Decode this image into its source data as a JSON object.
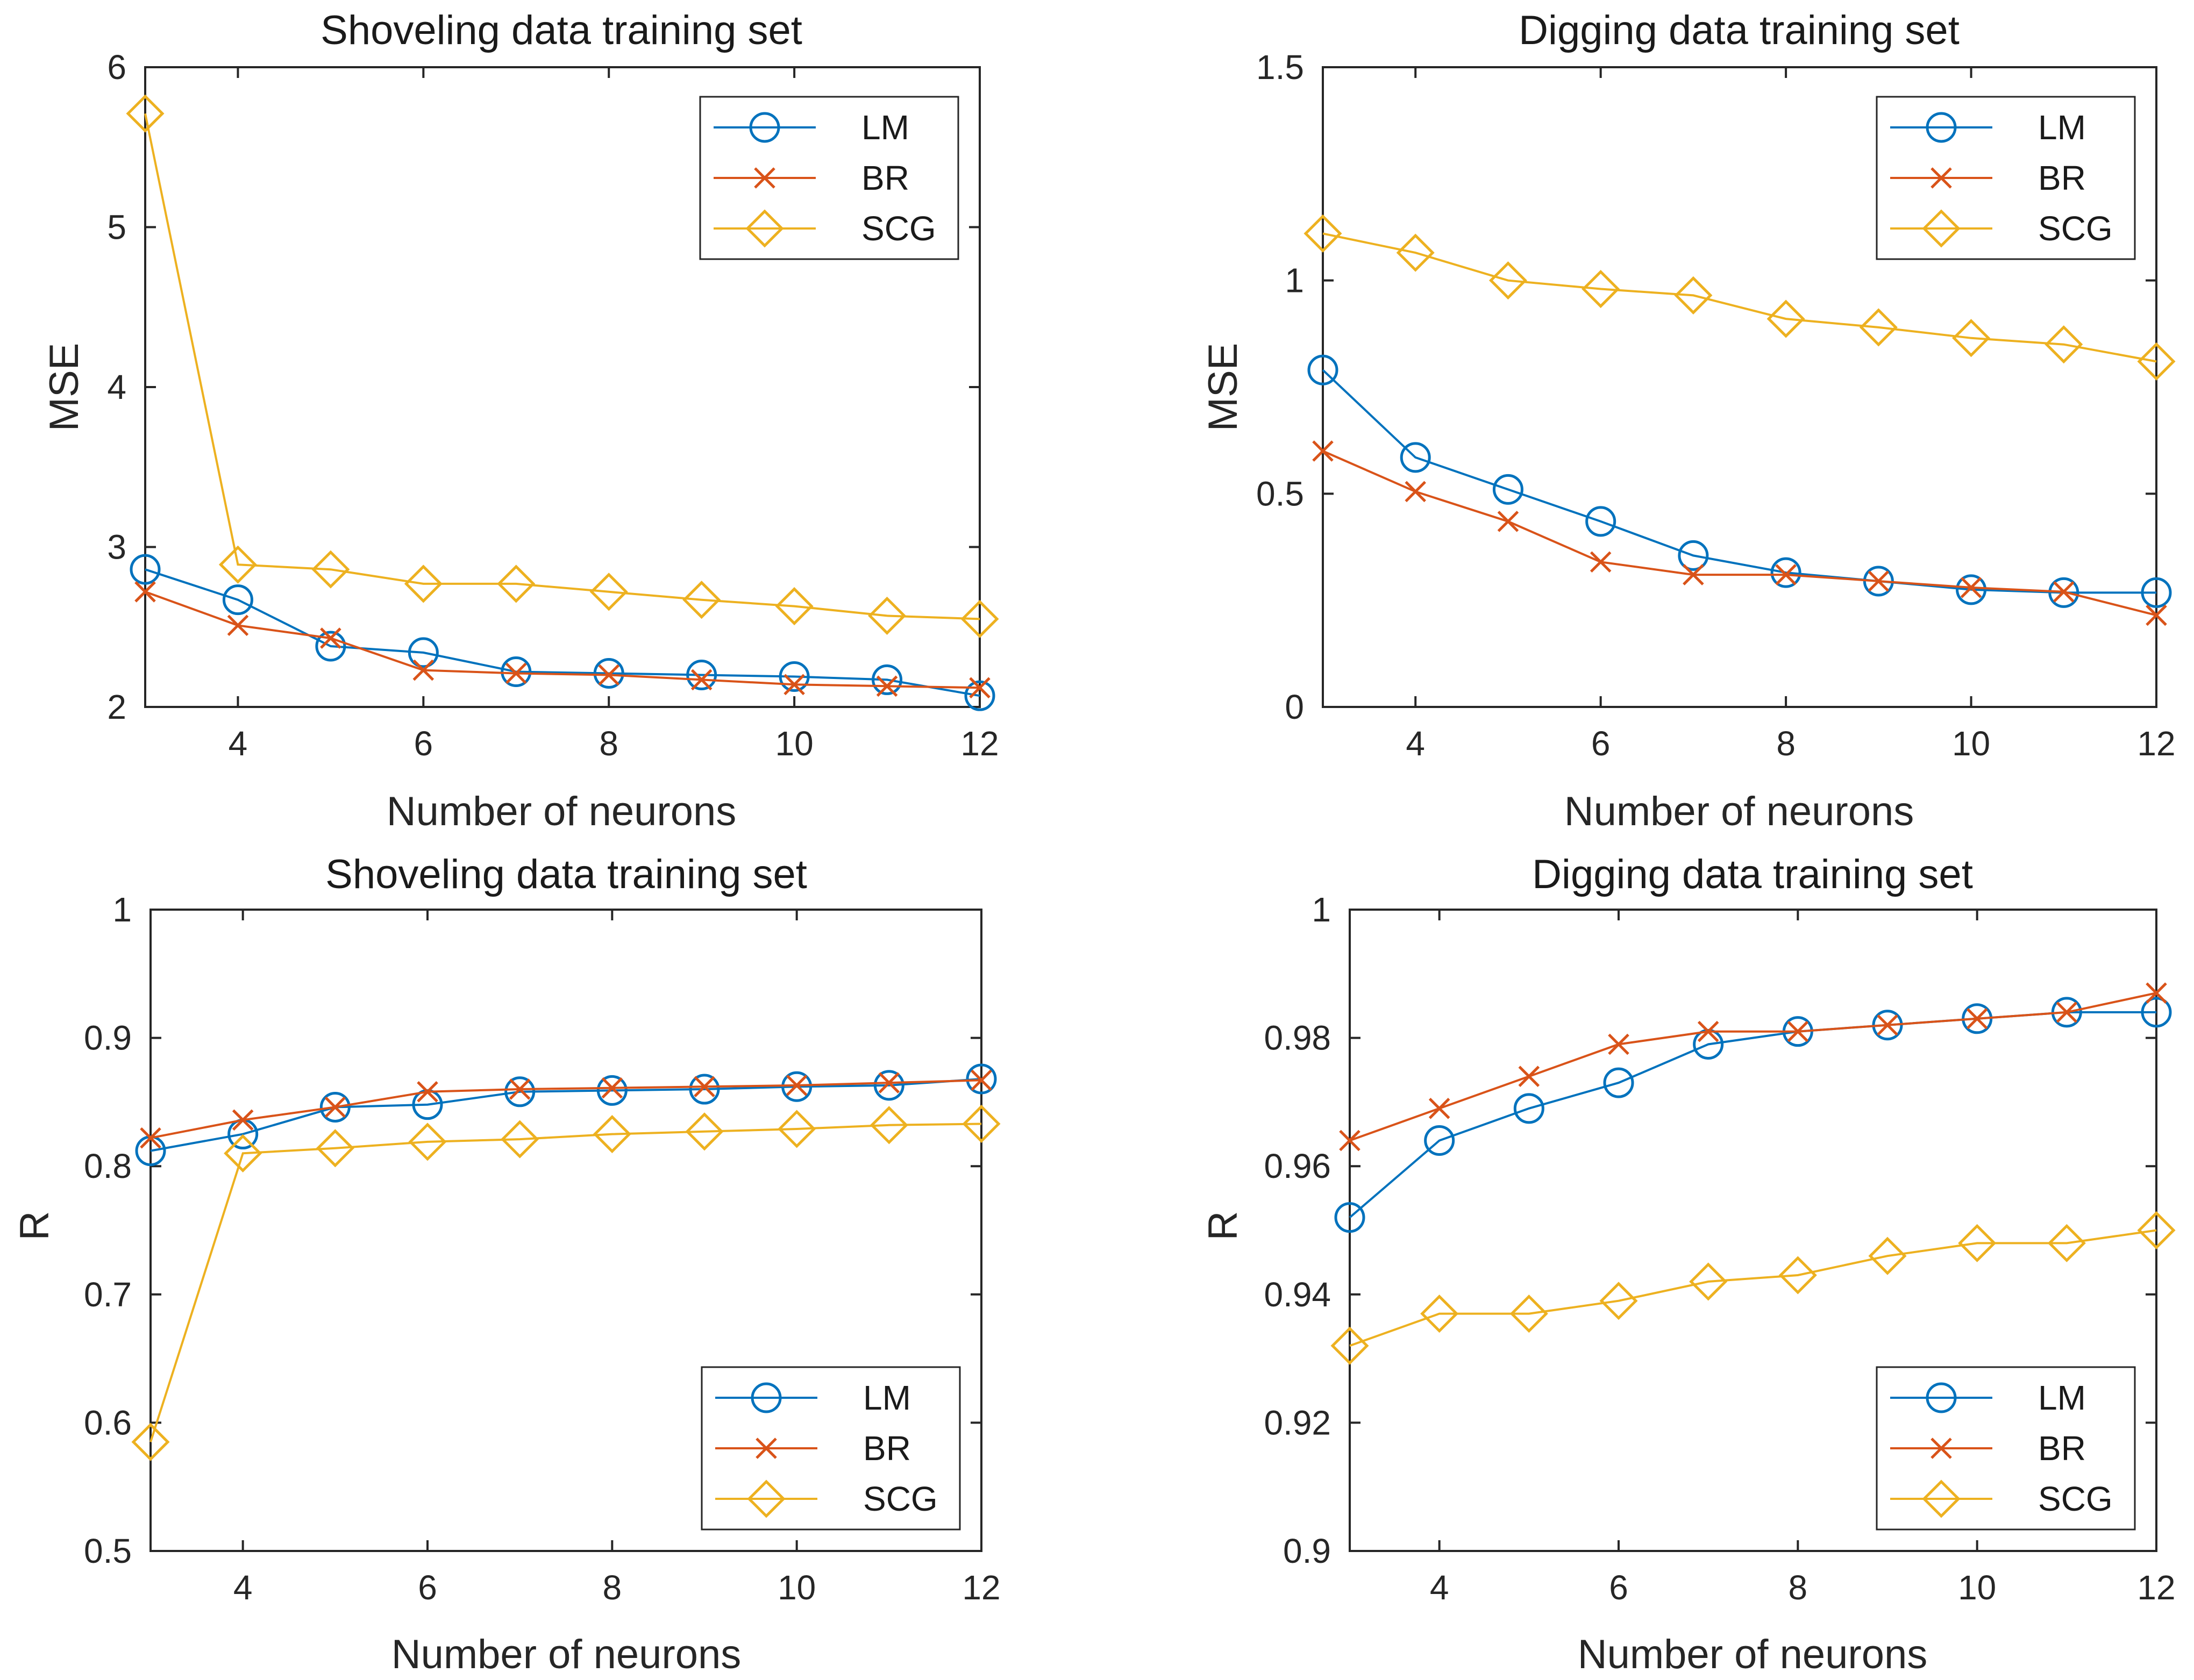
{
  "chart_data": [
    {
      "type": "line",
      "title": "Shoveling data training set",
      "xlabel": "Number of neurons",
      "ylabel": "MSE",
      "xlim": [
        3,
        12
      ],
      "ylim": [
        2,
        6
      ],
      "xticks": [
        4,
        6,
        8,
        10,
        12
      ],
      "yticks": [
        2,
        3,
        4,
        5,
        6
      ],
      "legend_position": "top-right",
      "x": [
        3,
        4,
        5,
        6,
        7,
        8,
        9,
        10,
        11,
        12
      ],
      "series": [
        {
          "name": "LM",
          "color": "#0072BD",
          "marker": "circle",
          "values": [
            2.86,
            2.67,
            2.38,
            2.34,
            2.22,
            2.21,
            2.2,
            2.19,
            2.17,
            2.07
          ]
        },
        {
          "name": "BR",
          "color": "#D95319",
          "marker": "x",
          "values": [
            2.72,
            2.51,
            2.43,
            2.23,
            2.21,
            2.2,
            2.17,
            2.14,
            2.13,
            2.12
          ]
        },
        {
          "name": "SCG",
          "color": "#EDB120",
          "marker": "diamond",
          "values": [
            5.71,
            2.89,
            2.86,
            2.77,
            2.77,
            2.72,
            2.67,
            2.63,
            2.57,
            2.55
          ]
        }
      ]
    },
    {
      "type": "line",
      "title": "Digging data training set",
      "xlabel": "Number of neurons",
      "ylabel": "MSE",
      "xlim": [
        3,
        12
      ],
      "ylim": [
        0,
        1.5
      ],
      "xticks": [
        4,
        6,
        8,
        10,
        12
      ],
      "yticks": [
        0,
        0.5,
        1,
        1.5
      ],
      "legend_position": "top-right",
      "x": [
        3,
        4,
        5,
        6,
        7,
        8,
        9,
        10,
        11,
        12
      ],
      "series": [
        {
          "name": "LM",
          "color": "#0072BD",
          "marker": "circle",
          "values": [
            0.79,
            0.585,
            0.51,
            0.435,
            0.355,
            0.315,
            0.295,
            0.275,
            0.268,
            0.268
          ]
        },
        {
          "name": "BR",
          "color": "#D95319",
          "marker": "x",
          "values": [
            0.6,
            0.505,
            0.435,
            0.34,
            0.31,
            0.31,
            0.295,
            0.28,
            0.27,
            0.215
          ]
        },
        {
          "name": "SCG",
          "color": "#EDB120",
          "marker": "diamond",
          "values": [
            1.11,
            1.065,
            1.0,
            0.98,
            0.965,
            0.91,
            0.89,
            0.865,
            0.85,
            0.81
          ]
        }
      ]
    },
    {
      "type": "line",
      "title": "Shoveling data training set",
      "xlabel": "Number of neurons",
      "ylabel": "R",
      "xlim": [
        3,
        12
      ],
      "ylim": [
        0.5,
        1
      ],
      "xticks": [
        4,
        6,
        8,
        10,
        12
      ],
      "yticks": [
        0.5,
        0.6,
        0.7,
        0.8,
        0.9,
        1
      ],
      "legend_position": "bottom-right",
      "x": [
        3,
        4,
        5,
        6,
        7,
        8,
        9,
        10,
        11,
        12
      ],
      "series": [
        {
          "name": "LM",
          "color": "#0072BD",
          "marker": "circle",
          "values": [
            0.812,
            0.825,
            0.846,
            0.848,
            0.858,
            0.859,
            0.86,
            0.862,
            0.863,
            0.868
          ]
        },
        {
          "name": "BR",
          "color": "#D95319",
          "marker": "x",
          "values": [
            0.822,
            0.836,
            0.846,
            0.858,
            0.86,
            0.861,
            0.862,
            0.863,
            0.865,
            0.867
          ]
        },
        {
          "name": "SCG",
          "color": "#EDB120",
          "marker": "diamond",
          "values": [
            0.585,
            0.81,
            0.814,
            0.819,
            0.821,
            0.825,
            0.827,
            0.829,
            0.832,
            0.833
          ]
        }
      ]
    },
    {
      "type": "line",
      "title": "Digging data training set",
      "xlabel": "Number of neurons",
      "ylabel": "R",
      "xlim": [
        3,
        12
      ],
      "ylim": [
        0.9,
        1
      ],
      "xticks": [
        4,
        6,
        8,
        10,
        12
      ],
      "yticks": [
        0.9,
        0.92,
        0.94,
        0.96,
        0.98,
        1
      ],
      "legend_position": "bottom-right",
      "x": [
        3,
        4,
        5,
        6,
        7,
        8,
        9,
        10,
        11,
        12
      ],
      "series": [
        {
          "name": "LM",
          "color": "#0072BD",
          "marker": "circle",
          "values": [
            0.952,
            0.964,
            0.969,
            0.973,
            0.979,
            0.981,
            0.982,
            0.983,
            0.984,
            0.984
          ]
        },
        {
          "name": "BR",
          "color": "#D95319",
          "marker": "x",
          "values": [
            0.964,
            0.969,
            0.974,
            0.979,
            0.981,
            0.981,
            0.982,
            0.983,
            0.984,
            0.987
          ]
        },
        {
          "name": "SCG",
          "color": "#EDB120",
          "marker": "diamond",
          "values": [
            0.932,
            0.937,
            0.937,
            0.939,
            0.942,
            0.943,
            0.946,
            0.948,
            0.948,
            0.95
          ]
        }
      ]
    }
  ]
}
